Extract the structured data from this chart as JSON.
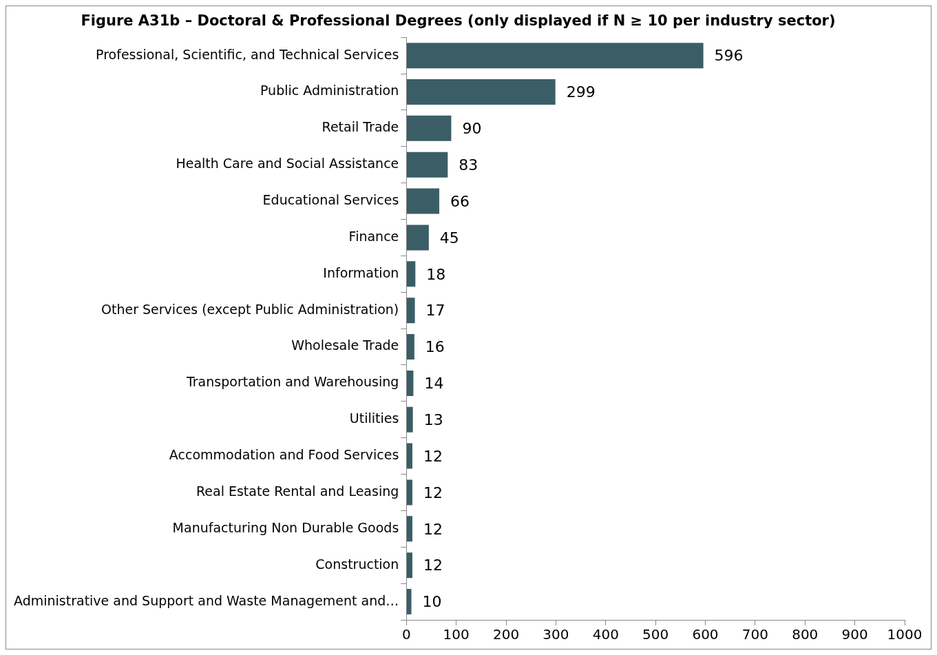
{
  "chart_data": {
    "type": "bar",
    "title": "Figure A31b – Doctoral & Professional Degrees (only displayed if N ≥ 10 per industry sector)",
    "orientation": "horizontal",
    "categories": [
      "Professional, Scientific, and Technical Services",
      "Public Administration",
      "Retail Trade",
      "Health Care and Social Assistance",
      "Educational Services",
      "Finance",
      "Information",
      "Other Services (except Public Administration)",
      "Wholesale Trade",
      "Transportation and Warehousing",
      "Utilities",
      "Accommodation and Food Services",
      "Real Estate Rental and Leasing",
      "Manufacturing Non Durable Goods",
      "Construction",
      "Administrative and Support and Waste Management and…"
    ],
    "values": [
      596,
      299,
      90,
      83,
      66,
      45,
      18,
      17,
      16,
      14,
      13,
      12,
      12,
      12,
      12,
      10
    ],
    "color": "#3b5e66",
    "xlim": [
      0,
      1000
    ],
    "xticks": [
      0,
      100,
      200,
      300,
      400,
      500,
      600,
      700,
      800,
      900,
      1000
    ],
    "grid": false,
    "legend": false,
    "data_labels": true
  }
}
